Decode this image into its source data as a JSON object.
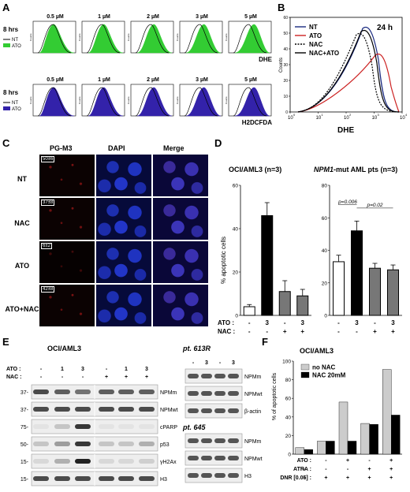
{
  "panels": {
    "A": {
      "letter": "A",
      "rows": [
        {
          "time": "8 hrs",
          "legend": [
            "NT",
            "ATO"
          ],
          "probe": "DHE",
          "fill": "#33cc33"
        },
        {
          "time": "8 hrs",
          "legend": [
            "NT",
            "ATO"
          ],
          "probe": "H2DCFDA",
          "fill": "#3322aa"
        }
      ],
      "doses": [
        "0.5 µM",
        "1 µM",
        "2 µM",
        "3 µM",
        "5 µM"
      ],
      "ylabel": "Counts"
    },
    "B": {
      "letter": "B",
      "time": "24 h",
      "legend": [
        "NT",
        "ATO",
        "NAC",
        "NAC+ATO"
      ],
      "xlabel": "DHE",
      "ylabel": "Counts",
      "xticks": [
        "10",
        "10",
        "10",
        "10",
        "10"
      ],
      "xexp": [
        "0",
        "1",
        "2",
        "3",
        "4"
      ],
      "yticks": [
        "0",
        "10",
        "20",
        "30",
        "40",
        "50",
        "60"
      ]
    },
    "C": {
      "letter": "C",
      "columns": [
        "PG-M3",
        "DAPI",
        "Merge"
      ],
      "rows": [
        {
          "label": "NT",
          "count": "50±6"
        },
        {
          "label": "NAC",
          "count": "37±8"
        },
        {
          "label": "ATO",
          "count": "6±2"
        },
        {
          "label": "ATO+NAC",
          "count": "42±8"
        }
      ]
    },
    "D": {
      "letter": "D",
      "ylabel": "% apoptotic cells",
      "row_ato": "ATO :",
      "row_nac": "NAC :",
      "ato": [
        "-",
        "3",
        "-",
        "3"
      ],
      "nac": [
        "-",
        "-",
        "+",
        "+"
      ]
    },
    "E": {
      "letter": "E",
      "left_title": "OCI/AML3",
      "ato_label": "ATO :",
      "nac_label": "NAC :",
      "ato": [
        "-",
        "1",
        "3",
        "-",
        "1",
        "3"
      ],
      "nac": [
        "-",
        "-",
        "-",
        "+",
        "+",
        "+"
      ],
      "left_rows": [
        {
          "mw": "37-",
          "name": "NPMm"
        },
        {
          "mw": "37-",
          "name": "NPMwt"
        },
        {
          "mw": "75-",
          "name": "cPARP"
        },
        {
          "mw": "50-",
          "name": "p53"
        },
        {
          "mw": "15-",
          "name": "γH2Ax"
        },
        {
          "mw": "15-",
          "name": "H3"
        }
      ],
      "pt1_title": "pt. 613R",
      "pt1_ato": [
        "-",
        "3",
        "-",
        "3"
      ],
      "pt1_rows": [
        "NPMm",
        "NPMwt",
        "β-actin"
      ],
      "pt2_title": "pt. 645",
      "pt2_rows": [
        "NPMm",
        "NPMwt",
        "H3"
      ]
    },
    "F": {
      "letter": "F",
      "title": "OCI/AML3",
      "ylabel": "% of apoptotic cells",
      "row_ato": "ATO :",
      "row_atra": "ATRA :",
      "row_dnr": "DNR [0.05] :",
      "ato": [
        "-",
        "-",
        "+",
        "-",
        "+"
      ],
      "atra": [
        "-",
        "-",
        "-",
        "+",
        "+"
      ],
      "dnr": [
        "-",
        "+",
        "+",
        "+",
        "+"
      ]
    }
  },
  "chart_data": [
    {
      "type": "bar",
      "title": "OCI/AML3 (n=3)",
      "ylabel": "% apoptotic cells",
      "categories": [
        "-/-",
        "3/-",
        "-/+",
        "3/+"
      ],
      "values": [
        4,
        46,
        11,
        9
      ],
      "errors": [
        1,
        6,
        5,
        3
      ],
      "ylim": [
        0,
        60
      ],
      "yticks": [
        0,
        20,
        40,
        60
      ],
      "colors": [
        "#ffffff",
        "#000000",
        "#777777",
        "#777777"
      ]
    },
    {
      "type": "bar",
      "title": "NPM1-mut AML pts (n=3)",
      "title_italic": "NPM1",
      "title_rest": "-mut AML pts (n=3)",
      "categories": [
        "-/-",
        "3/-",
        "-/+",
        "3/+"
      ],
      "values": [
        33,
        52,
        29,
        28
      ],
      "errors": [
        4,
        6,
        3,
        3
      ],
      "ylim": [
        0,
        80
      ],
      "yticks": [
        0,
        20,
        40,
        60,
        80
      ],
      "colors": [
        "#ffffff",
        "#000000",
        "#777777",
        "#777777"
      ],
      "annotations": [
        "p=0.006",
        "p=0.02"
      ]
    },
    {
      "type": "bar",
      "title": "OCI/AML3",
      "ylabel": "% of apoptotic cells",
      "categories": [
        "1",
        "2",
        "3",
        "4",
        "5"
      ],
      "series": [
        {
          "name": "no NAC",
          "values": [
            7,
            14,
            56,
            33,
            91
          ],
          "color": "#cccccc"
        },
        {
          "name": "NAC 20mM",
          "values": [
            5,
            14,
            14,
            32,
            42
          ],
          "color": "#000000"
        }
      ],
      "ylim": [
        0,
        100
      ],
      "yticks": [
        0,
        20,
        40,
        60,
        80,
        100
      ],
      "legend": "top-left"
    }
  ]
}
